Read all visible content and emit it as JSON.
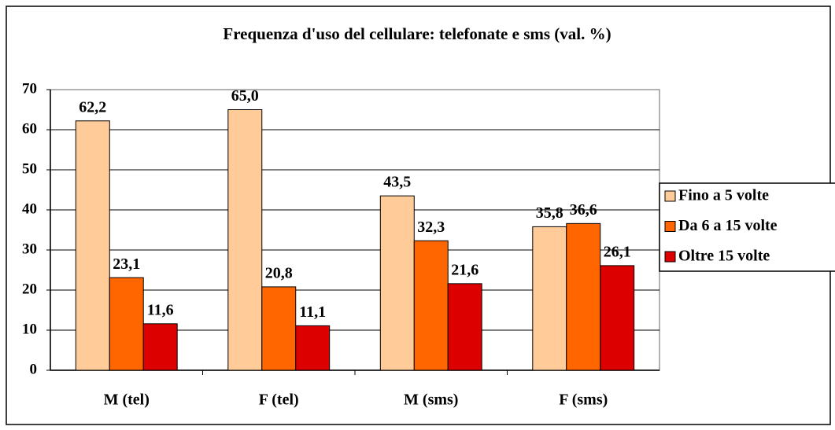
{
  "chart_data": {
    "type": "bar",
    "title": "Frequenza d'uso del cellulare: telefonate e sms (val. %)",
    "categories": [
      "M (tel)",
      "F (tel)",
      "M (sms)",
      "F (sms)"
    ],
    "series": [
      {
        "name": "Fino a 5 volte",
        "color": "#ffcc99",
        "values": [
          62.2,
          65.0,
          43.5,
          35.8
        ],
        "value_labels": [
          "62,2",
          "65,0",
          "43,5",
          "35,8"
        ]
      },
      {
        "name": "Da 6 a 15 volte",
        "color": "#ff6600",
        "values": [
          23.1,
          20.8,
          32.3,
          36.6
        ],
        "value_labels": [
          "23,1",
          "20,8",
          "32,3",
          "36,6"
        ]
      },
      {
        "name": "Oltre 15 volte",
        "color": "#dd0000",
        "values": [
          11.6,
          11.1,
          21.6,
          26.1
        ],
        "value_labels": [
          "11,6",
          "11,1",
          "21,6",
          "26,1"
        ]
      }
    ],
    "ylim": [
      0,
      70
    ],
    "yticks": [
      0,
      10,
      20,
      30,
      40,
      50,
      60,
      70
    ],
    "grid": true,
    "legend": "right"
  }
}
